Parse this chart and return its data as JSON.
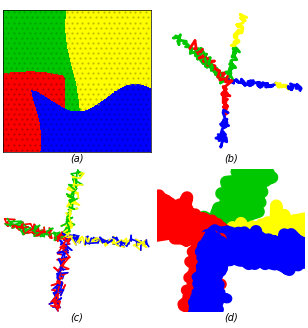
{
  "figure_width": 3.08,
  "figure_height": 3.28,
  "dpi": 100,
  "background_color": "#ffffff",
  "label_a": "(a)",
  "label_b": "(b)",
  "label_c": "(c)",
  "label_d": "(d)",
  "label_fontsize": 7,
  "colors": {
    "red": [
      255,
      0,
      0
    ],
    "green": [
      0,
      200,
      0
    ],
    "yellow": [
      255,
      255,
      0
    ],
    "blue": [
      0,
      0,
      255
    ]
  },
  "color_dark": {
    "red": [
      180,
      0,
      0
    ],
    "green": [
      0,
      140,
      0
    ],
    "yellow": [
      180,
      180,
      0
    ],
    "blue": [
      0,
      0,
      180
    ]
  }
}
